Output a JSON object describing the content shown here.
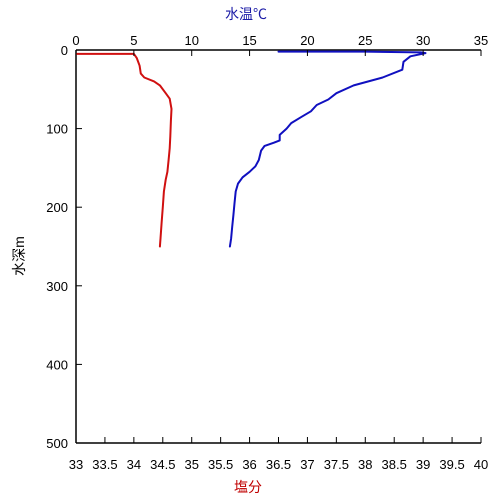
{
  "chart_data": {
    "type": "line",
    "top_axis": {
      "label": "水温℃",
      "color": "#1a1aa6",
      "range": [
        0,
        35
      ],
      "ticks": [
        "0",
        "5",
        "10",
        "15",
        "20",
        "25",
        "30",
        "35"
      ]
    },
    "bottom_axis": {
      "label": "塩分",
      "color": "#c00000",
      "range": [
        33,
        40
      ],
      "ticks": [
        "33",
        "33.5",
        "34",
        "34.5",
        "35",
        "35.5",
        "36",
        "36.5",
        "37",
        "37.5",
        "38",
        "38.5",
        "39",
        "39.5",
        "40"
      ]
    },
    "y_axis": {
      "label": "水深m",
      "range": [
        0,
        500
      ],
      "reversed": true,
      "ticks": [
        "0",
        "100",
        "200",
        "300",
        "400",
        "500"
      ]
    },
    "grid": false,
    "series": [
      {
        "axis": "top",
        "color": "#1010c0",
        "points": [
          [
            17.5,
            2
          ],
          [
            25.0,
            2
          ],
          [
            29.8,
            3
          ],
          [
            30.2,
            4
          ],
          [
            28.9,
            8
          ],
          [
            28.3,
            15
          ],
          [
            28.2,
            25
          ],
          [
            26.5,
            35
          ],
          [
            24.0,
            45
          ],
          [
            22.5,
            55
          ],
          [
            21.8,
            63
          ],
          [
            20.8,
            70
          ],
          [
            20.3,
            78
          ],
          [
            19.5,
            85
          ],
          [
            18.6,
            93
          ],
          [
            18.2,
            100
          ],
          [
            17.6,
            108
          ],
          [
            17.6,
            115
          ],
          [
            17.1,
            118
          ],
          [
            16.3,
            122
          ],
          [
            16.0,
            128
          ],
          [
            15.8,
            140
          ],
          [
            15.5,
            148
          ],
          [
            15.0,
            155
          ],
          [
            14.4,
            162
          ],
          [
            14.0,
            170
          ],
          [
            13.8,
            180
          ],
          [
            13.7,
            195
          ],
          [
            13.6,
            210
          ],
          [
            13.5,
            225
          ],
          [
            13.4,
            240
          ],
          [
            13.3,
            250
          ]
        ]
      },
      {
        "axis": "bottom",
        "color": "#d01010",
        "points": [
          [
            33.02,
            5
          ],
          [
            34.0,
            5
          ],
          [
            34.05,
            10
          ],
          [
            34.1,
            20
          ],
          [
            34.12,
            30
          ],
          [
            34.18,
            35
          ],
          [
            34.35,
            40
          ],
          [
            34.45,
            45
          ],
          [
            34.55,
            55
          ],
          [
            34.62,
            62
          ],
          [
            34.65,
            75
          ],
          [
            34.64,
            90
          ],
          [
            34.63,
            110
          ],
          [
            34.62,
            125
          ],
          [
            34.6,
            140
          ],
          [
            34.58,
            155
          ],
          [
            34.55,
            165
          ],
          [
            34.52,
            180
          ],
          [
            34.5,
            200
          ],
          [
            34.48,
            220
          ],
          [
            34.46,
            240
          ],
          [
            34.45,
            250
          ]
        ]
      }
    ]
  }
}
